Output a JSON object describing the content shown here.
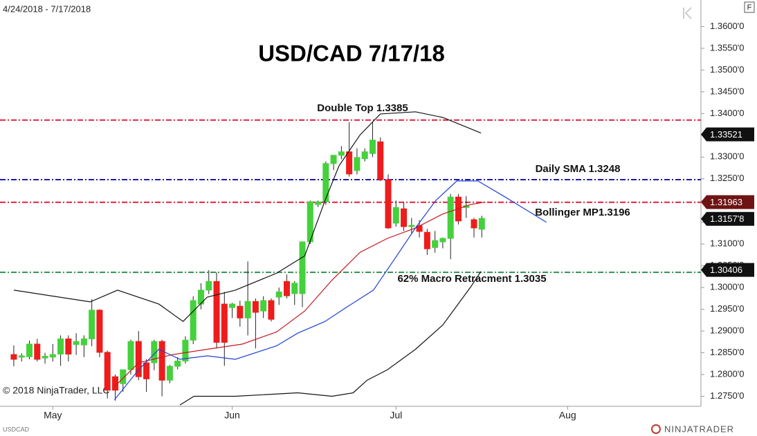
{
  "chart_data": {
    "type": "candlestick",
    "title": "USD/CAD 7/17/18",
    "date_range": "4/24/2018 - 7/17/2018",
    "copyright": "© 2018 NinjaTrader, LLC",
    "symbol": "USDCAD",
    "logo": "NINJATRADER",
    "button": "F",
    "xlim": [
      -1.77,
      88.1
    ],
    "xticks": [
      {
        "value": 5,
        "label": "May"
      },
      {
        "value": 28,
        "label": "Jun"
      },
      {
        "value": 49,
        "label": "Jul"
      },
      {
        "value": 71,
        "label": "Aug"
      }
    ],
    "ylim": [
      1.2727,
      1.3661
    ],
    "yticks": [
      {
        "value": 1.275,
        "label": "1.2750'0"
      },
      {
        "value": 1.28,
        "label": "1.2800'0"
      },
      {
        "value": 1.285,
        "label": "1.2850'0"
      },
      {
        "value": 1.29,
        "label": "1.2900'0"
      },
      {
        "value": 1.295,
        "label": "1.2950'0"
      },
      {
        "value": 1.3,
        "label": "1.3000'0"
      },
      {
        "value": 1.305,
        "label": "1.3050'0"
      },
      {
        "value": 1.31,
        "label": "1.3100'0"
      },
      {
        "value": 1.315,
        "label": "1.3150'0"
      },
      {
        "value": 1.32,
        "label": "1.3200'0"
      },
      {
        "value": 1.325,
        "label": "1.3250'0"
      },
      {
        "value": 1.33,
        "label": "1.3300'0"
      },
      {
        "value": 1.335,
        "label": "1.3350'0"
      },
      {
        "value": 1.34,
        "label": "1.3400'0"
      },
      {
        "value": 1.345,
        "label": "1.3450'0"
      },
      {
        "value": 1.35,
        "label": "1.3500'0"
      },
      {
        "value": 1.355,
        "label": "1.3550'0"
      },
      {
        "value": 1.36,
        "label": "1.3600'0"
      }
    ],
    "up_color": "#44d13c",
    "down_color": "#ee1c1c",
    "candles": {
      "open": [
        1.2846,
        1.284,
        1.2841,
        1.287,
        1.2838,
        1.284,
        1.2847,
        1.2882,
        1.2869,
        1.2868,
        1.2882,
        1.2948,
        1.2851,
        1.2795,
        1.2779,
        1.2811,
        1.2876,
        1.2827,
        1.2827,
        1.2876,
        1.2787,
        1.2819,
        1.2831,
        1.2879,
        1.2962,
        1.2994,
        1.3014,
        1.2962,
        1.2954,
        1.2957,
        1.293,
        1.2968,
        1.2946,
        1.297,
        1.2978,
        1.3014,
        1.2986,
        1.2986,
        1.3105,
        1.3191,
        1.3197,
        1.3285,
        1.3304,
        1.3312,
        1.3269,
        1.3296,
        1.3308,
        1.3335,
        1.3248,
        1.3148,
        1.3181,
        1.314,
        1.3142,
        1.3127,
        1.3092,
        1.3105,
        1.3113,
        1.3208,
        1.3184,
        1.3156,
        1.3134
      ],
      "high": [
        1.2867,
        1.2849,
        1.2878,
        1.2882,
        1.285,
        1.287,
        1.289,
        1.289,
        1.2895,
        1.289,
        1.2973,
        1.295,
        1.2855,
        1.28,
        1.279,
        1.288,
        1.29,
        1.2835,
        1.288,
        1.288,
        1.2822,
        1.284,
        1.2888,
        1.298,
        1.301,
        1.304,
        1.3035,
        1.299,
        1.2965,
        1.297,
        1.306,
        1.2975,
        1.298,
        1.2975,
        1.3,
        1.303,
        1.3015,
        1.3105,
        1.32,
        1.32,
        1.329,
        1.33,
        1.3325,
        1.338,
        1.332,
        1.332,
        1.338,
        1.3345,
        1.326,
        1.32,
        1.3195,
        1.316,
        1.3155,
        1.3135,
        1.313,
        1.3115,
        1.3215,
        1.3215,
        1.321,
        1.316,
        1.3165
      ],
      "low": [
        1.2819,
        1.283,
        1.2835,
        1.283,
        1.2825,
        1.283,
        1.282,
        1.283,
        1.2845,
        1.284,
        1.2865,
        1.284,
        1.2745,
        1.274,
        1.276,
        1.28,
        1.2787,
        1.276,
        1.281,
        1.275,
        1.278,
        1.2812,
        1.2825,
        1.287,
        1.295,
        1.2985,
        1.286,
        1.282,
        1.293,
        1.291,
        1.289,
        1.286,
        1.293,
        1.2922,
        1.296,
        1.2975,
        1.296,
        1.2955,
        1.31,
        1.3185,
        1.319,
        1.327,
        1.3295,
        1.3255,
        1.326,
        1.329,
        1.33,
        1.3245,
        1.3135,
        1.314,
        1.313,
        1.3125,
        1.3115,
        1.3075,
        1.308,
        1.309,
        1.3065,
        1.3145,
        1.316,
        1.3115,
        1.3115
      ],
      "close": [
        1.2835,
        1.2843,
        1.287,
        1.2835,
        1.2842,
        1.2846,
        1.2882,
        1.2847,
        1.2876,
        1.2882,
        1.2948,
        1.2851,
        1.2764,
        1.2764,
        1.2811,
        1.2876,
        1.2795,
        1.279,
        1.2876,
        1.2787,
        1.2819,
        1.2831,
        1.2879,
        1.297,
        1.2994,
        1.3014,
        1.2874,
        1.2874,
        1.2962,
        1.293,
        1.2968,
        1.2943,
        1.297,
        1.2927,
        1.299,
        1.2981,
        1.301,
        1.3105,
        1.3197,
        1.3197,
        1.3285,
        1.3304,
        1.3312,
        1.3261,
        1.3299,
        1.3312,
        1.3339,
        1.3248,
        1.3137,
        1.3184,
        1.314,
        1.3143,
        1.3129,
        1.3089,
        1.3108,
        1.3113,
        1.3208,
        1.3153,
        1.3188,
        1.3137,
        1.3159
      ]
    },
    "lines": [
      {
        "color": "#111111",
        "x": [
          0,
          9.8,
          13.3,
          18.6,
          21.7,
          24.8,
          28.4,
          33.7,
          37.3,
          39.9,
          41.7,
          44.4,
          47,
          51.5,
          55,
          59.9
        ],
        "values": [
          1.2994,
          1.2967,
          1.2994,
          1.2962,
          1.2922,
          1.2978,
          1.2994,
          1.3033,
          1.3073,
          1.32,
          1.328,
          1.3351,
          1.3399,
          1.3404,
          1.3391,
          1.3355
        ]
      },
      {
        "color": "#111111",
        "x": [
          21.3,
          23.1,
          28.4,
          36.4,
          40.8,
          43.5,
          45.3,
          47.9,
          51.5,
          55,
          58.6,
          59.9
        ],
        "values": [
          1.273,
          1.275,
          1.275,
          1.2758,
          1.275,
          1.2758,
          1.2787,
          1.2811,
          1.2858,
          1.2914,
          1.3002,
          1.3037
        ]
      },
      {
        "color": "#c8141e",
        "x": [
          12.9,
          16,
          20.4,
          24.8,
          29.3,
          33.7,
          37.3,
          40.8,
          44.4,
          47.9,
          51.5,
          55,
          58.6,
          60.3
        ],
        "values": [
          1.2772,
          1.2827,
          1.2846,
          1.2858,
          1.287,
          1.2898,
          1.2946,
          1.3017,
          1.3081,
          1.3113,
          1.3137,
          1.3169,
          1.3191,
          1.3196
        ]
      },
      {
        "color": "#1f3fd6",
        "x": [
          12.9,
          16,
          18.6,
          21.3,
          24.8,
          28.4,
          33.7,
          36.4,
          39.9,
          42.6,
          46.1,
          48.8,
          51.5,
          54.1,
          56.8,
          59.5,
          63,
          68.3
        ],
        "values": [
          1.2742,
          1.2811,
          1.2858,
          1.2835,
          1.2843,
          1.2835,
          1.2866,
          1.2895,
          1.2922,
          1.2954,
          1.2994,
          1.3065,
          1.3137,
          1.32,
          1.3245,
          1.3245,
          1.3208,
          1.315
        ]
      }
    ],
    "hlines": [
      {
        "value": 1.3385,
        "label": "Double Top 1.3385",
        "color": "#e0203a"
      },
      {
        "value": 1.3248,
        "label": "Daily SMA 1.3248",
        "color": "#1a1aa8"
      },
      {
        "value": 1.3196,
        "label": "Bollinger MP1.3196",
        "color": "#e0203a"
      },
      {
        "value": 1.3035,
        "label": "62% Macro Retracment 1.3035",
        "color": "#2f8f4f"
      }
    ],
    "price_markers": [
      {
        "value": 1.33521,
        "color": "#111111"
      },
      {
        "value": 1.31963,
        "color": "#6e1414"
      },
      {
        "value": 1.31578,
        "label": "1.3157'8",
        "color": "#111111"
      },
      {
        "value": 1.30406,
        "color": "#111111"
      }
    ]
  }
}
